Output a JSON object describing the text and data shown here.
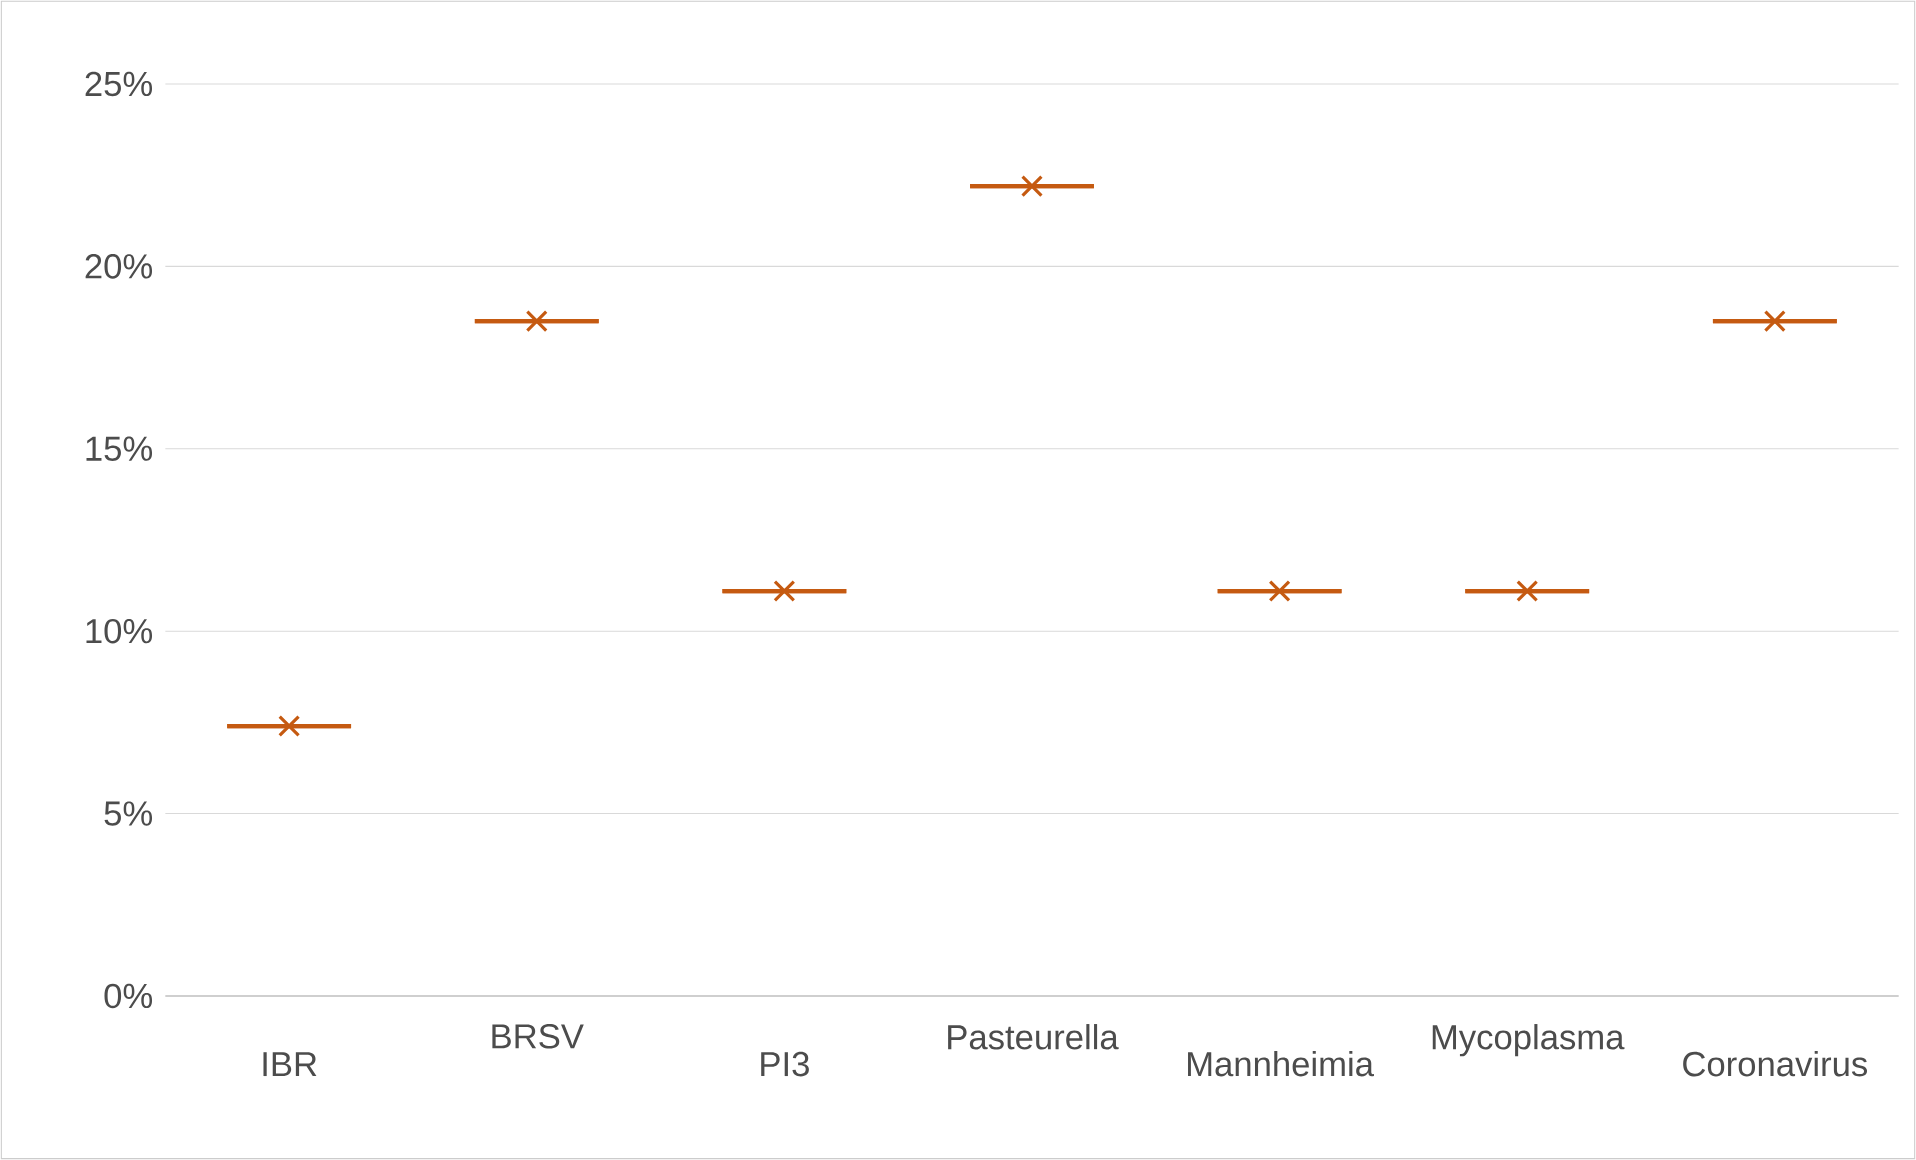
{
  "chart_data": {
    "type": "box",
    "categories": [
      "IBR",
      "BRSV",
      "PI3",
      "Pasteurella",
      "Mannheimia",
      "Mycoplasma",
      "Coronavirus"
    ],
    "color": "#c55a11",
    "marker": "cross",
    "boxes": [
      {
        "low": 7.4,
        "q1": 7.4,
        "median": 7.4,
        "q3": 7.4,
        "high": 7.4,
        "mean": 7.4
      },
      {
        "low": 18.5,
        "q1": 18.5,
        "median": 18.5,
        "q3": 18.5,
        "high": 18.5,
        "mean": 18.5
      },
      {
        "low": 11.1,
        "q1": 11.1,
        "median": 11.1,
        "q3": 11.1,
        "high": 11.1,
        "mean": 11.1
      },
      {
        "low": 22.2,
        "q1": 22.2,
        "median": 22.2,
        "q3": 22.2,
        "high": 22.2,
        "mean": 22.2
      },
      {
        "low": 11.1,
        "q1": 11.1,
        "median": 11.1,
        "q3": 11.1,
        "high": 11.1,
        "mean": 11.1
      },
      {
        "low": 11.1,
        "q1": 11.1,
        "median": 11.1,
        "q3": 11.1,
        "high": 11.1,
        "mean": 11.1
      },
      {
        "low": 18.5,
        "q1": 18.5,
        "median": 18.5,
        "q3": 18.5,
        "high": 18.5,
        "mean": 18.5
      }
    ],
    "ylim": [
      0,
      25
    ],
    "yticks": [
      {
        "value": 0,
        "label": "0%"
      },
      {
        "value": 5,
        "label": "5%"
      },
      {
        "value": 10,
        "label": "10%"
      },
      {
        "value": 15,
        "label": "15%"
      },
      {
        "value": 20,
        "label": "20%"
      },
      {
        "value": 25,
        "label": "25%"
      }
    ],
    "grid": "y"
  }
}
